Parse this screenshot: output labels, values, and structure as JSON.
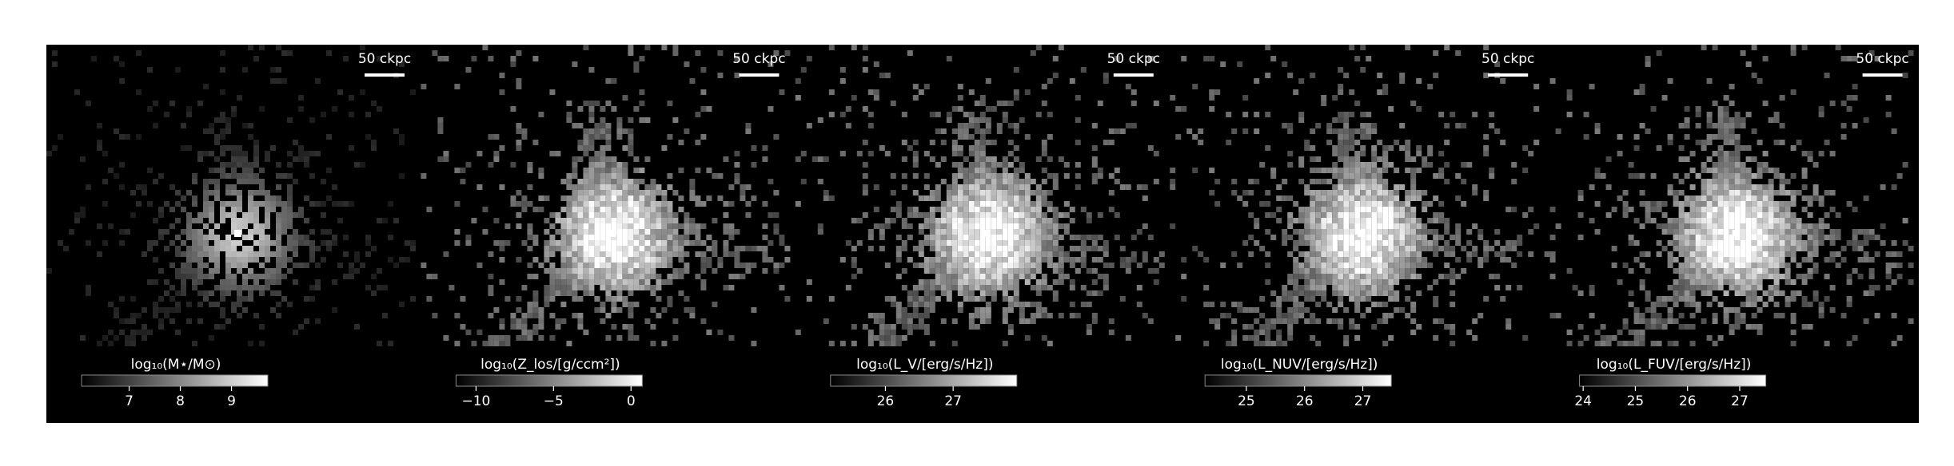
{
  "chart_data": [
    {
      "type": "image",
      "scale_bar_label": "50 ckpc",
      "colorbar_label": "log₁₀(M⋆/M⊙)",
      "clim": [
        6.07,
        9.71
      ],
      "cticks": [
        7,
        8,
        9
      ]
    },
    {
      "type": "image",
      "scale_bar_label": "50 ckpc",
      "colorbar_label": "log₁₀(Z_los/[g/ccm²])",
      "clim": [
        -11.29,
        0.73
      ],
      "cticks": [
        {
          "value": -10,
          "label": "−10"
        },
        {
          "value": -5,
          "label": "−5"
        },
        0
      ]
    },
    {
      "type": "image",
      "scale_bar_label": "50 ckpc",
      "colorbar_label": "log₁₀(L_V/[erg/s/Hz])",
      "clim": [
        25.19,
        27.94
      ],
      "cticks": [
        26,
        27
      ]
    },
    {
      "type": "image",
      "scale_bar_label": "50 ckpc",
      "colorbar_label": "log₁₀(L_NUV/[erg/s/Hz])",
      "clim": [
        24.29,
        27.49
      ],
      "cticks": [
        25,
        26,
        27
      ]
    },
    {
      "type": "image",
      "scale_bar_label": "50 ckpc",
      "colorbar_label": "log₁₀(L_FUV/[erg/s/Hz])",
      "clim": [
        23.93,
        27.5
      ],
      "cticks": [
        24,
        25,
        26,
        27
      ]
    }
  ]
}
